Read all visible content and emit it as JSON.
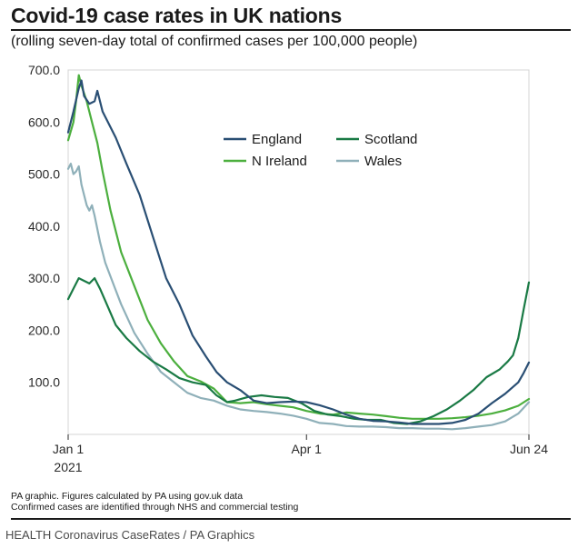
{
  "chart_data": {
    "type": "line",
    "title": "Covid-19 case rates in UK nations",
    "subtitle": "(rolling seven-day total of confirmed cases per 100,000 people)",
    "ylim": [
      0,
      700
    ],
    "yticks": [
      {
        "value": 100,
        "label": "100.0"
      },
      {
        "value": 200,
        "label": "200.0"
      },
      {
        "value": 300,
        "label": "300.0"
      },
      {
        "value": 400,
        "label": "400.0"
      },
      {
        "value": 500,
        "label": "500.0"
      },
      {
        "value": 600,
        "label": "600.0"
      },
      {
        "value": 700,
        "label": "700.0"
      }
    ],
    "xlim": [
      0,
      174
    ],
    "xunit": "days since 1 Jan 2021",
    "xticks": [
      {
        "value": 0,
        "label": "Jan 1",
        "sublabel": "2021"
      },
      {
        "value": 90,
        "label": "Apr 1",
        "sublabel": ""
      },
      {
        "value": 174,
        "label": "Jun 24",
        "sublabel": ""
      }
    ],
    "series": [
      {
        "name": "England",
        "color": "#2a4f74",
        "x": [
          0,
          2,
          4,
          5,
          6,
          8,
          10,
          11,
          13,
          15,
          18,
          22,
          27,
          32,
          37,
          42,
          47,
          52,
          56,
          60,
          65,
          70,
          75,
          80,
          85,
          90,
          95,
          100,
          105,
          110,
          115,
          120,
          125,
          130,
          135,
          140,
          145,
          150,
          155,
          160,
          165,
          170,
          172,
          174
        ],
        "y": [
          580,
          620,
          665,
          680,
          650,
          635,
          640,
          660,
          620,
          600,
          570,
          520,
          460,
          380,
          300,
          250,
          190,
          150,
          120,
          100,
          85,
          65,
          60,
          62,
          63,
          62,
          56,
          48,
          38,
          30,
          26,
          25,
          23,
          20,
          20,
          20,
          22,
          28,
          40,
          60,
          78,
          100,
          118,
          138
        ]
      },
      {
        "name": "Scotland",
        "color": "#1a7a45",
        "x": [
          0,
          2,
          4,
          6,
          8,
          10,
          12,
          15,
          18,
          22,
          27,
          32,
          37,
          42,
          47,
          52,
          56,
          60,
          63,
          68,
          73,
          78,
          83,
          88,
          93,
          98,
          103,
          108,
          113,
          118,
          123,
          128,
          133,
          138,
          143,
          148,
          153,
          158,
          163,
          166,
          168,
          170,
          172,
          174
        ],
        "y": [
          260,
          280,
          300,
          295,
          290,
          300,
          280,
          245,
          210,
          185,
          160,
          140,
          125,
          108,
          100,
          95,
          75,
          62,
          65,
          72,
          75,
          72,
          70,
          60,
          45,
          38,
          35,
          30,
          28,
          28,
          22,
          20,
          25,
          35,
          48,
          65,
          85,
          110,
          125,
          140,
          152,
          185,
          240,
          292
        ]
      },
      {
        "name": "N Ireland",
        "color": "#4caf3e",
        "x": [
          0,
          2,
          3,
          4,
          5,
          7,
          9,
          11,
          13,
          16,
          20,
          25,
          30,
          35,
          40,
          45,
          50,
          55,
          60,
          65,
          70,
          75,
          80,
          85,
          90,
          95,
          100,
          105,
          110,
          115,
          120,
          125,
          130,
          135,
          140,
          145,
          150,
          155,
          160,
          165,
          170,
          174
        ],
        "y": [
          565,
          600,
          640,
          690,
          670,
          640,
          600,
          560,
          505,
          430,
          350,
          285,
          220,
          175,
          140,
          112,
          102,
          88,
          62,
          60,
          62,
          58,
          55,
          52,
          45,
          40,
          38,
          42,
          40,
          38,
          35,
          32,
          30,
          30,
          30,
          31,
          33,
          36,
          40,
          46,
          55,
          68
        ]
      },
      {
        "name": "Wales",
        "color": "#8fb0b9",
        "x": [
          0,
          1,
          2,
          3,
          4,
          5,
          6,
          7,
          8,
          9,
          10,
          12,
          14,
          17,
          20,
          25,
          30,
          35,
          40,
          45,
          50,
          55,
          60,
          65,
          70,
          75,
          80,
          85,
          90,
          95,
          100,
          105,
          110,
          115,
          120,
          125,
          130,
          135,
          140,
          145,
          150,
          155,
          160,
          165,
          170,
          174
        ],
        "y": [
          510,
          520,
          500,
          505,
          515,
          480,
          460,
          440,
          430,
          440,
          420,
          370,
          330,
          290,
          250,
          195,
          155,
          120,
          100,
          80,
          70,
          65,
          55,
          48,
          45,
          43,
          40,
          36,
          30,
          22,
          20,
          16,
          15,
          15,
          14,
          12,
          12,
          11,
          11,
          10,
          12,
          15,
          18,
          25,
          40,
          62
        ]
      }
    ],
    "legend": {
      "placement": "upper-center",
      "entries": [
        "England",
        "Scotland",
        "N Ireland",
        "Wales"
      ]
    },
    "grid": "none"
  },
  "notes": {
    "line1": "PA graphic. Figures calculated by PA using gov.uk data",
    "line2": "Confirmed cases are identified through NHS and commercial testing"
  },
  "footer": "HEALTH Coronavirus CaseRates / PA Graphics"
}
